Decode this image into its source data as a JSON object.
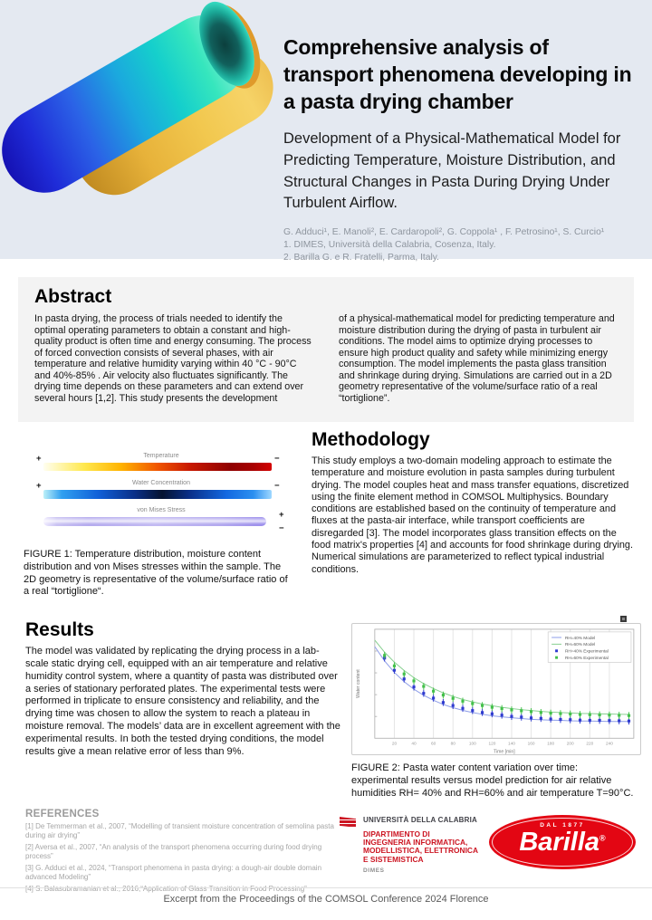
{
  "header": {
    "title": "Comprehensive analysis of transport phenomena developing in a pasta drying chamber",
    "subtitle": "Development of a Physical-Mathematical Model for Predicting Temperature, Moisture Distribution, and Structural Changes in Pasta During Drying Under Turbulent Airflow.",
    "authors": "G. Adduci¹, E. Manoli², E. Cardaropoli², G. Coppola¹ , F. Petrosino¹, S. Curcio¹",
    "affiliation1": "1. DIMES, Università della Calabria, Cosenza, Italy.",
    "affiliation2": "2. Barilla G. e R. Fratelli, Parma, Italy."
  },
  "abstract": {
    "heading": "Abstract",
    "col1": "In pasta drying, the process of trials needed to identify the optimal operating parameters to obtain a constant and high-quality product is often time and energy consuming. The process of forced convection consists of several phases, with air temperature and relative humidity varying within 40 °C - 90°C and 40%-85% . Air velocity also fluctuates significantly. The drying time depends on these parameters and can extend over several hours [1,2]. This study presents the development",
    "col2": "of a physical-mathematical model for predicting temperature and moisture distribution during the drying of pasta in turbulent air conditions. The model aims to optimize drying processes to ensure high product quality and safety while minimizing energy consumption. The model implements the pasta glass transition and shrinkage during drying. Simulations are carried out in a 2D geometry representative of the volume/surface ratio of a real “tortiglione”."
  },
  "figure1": {
    "bars": [
      {
        "label": "Temperature",
        "left_sign": "+",
        "right_sign": "−"
      },
      {
        "label": "Water Concentration",
        "left_sign": "+",
        "right_sign": "−"
      },
      {
        "label": "von Mises Stress",
        "top_sign": "+",
        "bottom_sign": "−"
      }
    ],
    "caption": "FIGURE 1: Temperature distribution, moisture content distribution and von Mises stresses within the sample. The 2D geometry is representative of the volume/surface ratio of a real “tortiglione“."
  },
  "methodology": {
    "heading": "Methodology",
    "body": "This study employs a two-domain modeling approach to estimate the temperature and moisture evolution in pasta samples during turbulent drying. The model couples heat and mass transfer equations, discretized using the finite element method in COMSOL Multiphysics. Boundary conditions are established based on the continuity of temperature and fluxes at the pasta-air interface, while transport coefficients are disregarded [3]. The model incorporates glass transition effects on the food matrix's properties [4] and accounts for food shrinkage during drying. Numerical simulations are parameterized to reflect typical industrial conditions."
  },
  "results": {
    "heading": "Results",
    "body": "The model was validated by replicating the drying process in a lab-scale static drying cell, equipped with an air temperature and relative humidity control system, where a quantity of pasta was distributed over a series of stationary perforated plates. The experimental tests were performed in triplicate to ensure consistency and reliability, and the drying time was chosen to allow the system to reach a plateau in moisture removal. The models’ data are in excellent agreement with the experimental results. In both the tested drying conditions, the model results give a mean relative error of less than 9%."
  },
  "figure2": {
    "caption": "FIGURE 2:  Pasta water content variation over time: experimental results versus model prediction for air relative humidities RH= 40% and RH=60% and air temperature T=90°C."
  },
  "references": {
    "heading": "REFERENCES",
    "items": [
      "[1] De Temmerman et al., 2007,  “Modelling of transient moisture concentration of semolina pasta during air drying”",
      "[2] Aversa et al., 2007, “An analysis of the transport phenomena occurring during food drying process”",
      "[3] G. Adduci et al., 2024, “Transport phenomena in pasta drying: a dough-air double domain advanced Modeling”",
      "[4] S. Balasubramanian et al., 2016,“Application of Glass Transition in Food Processing”"
    ]
  },
  "logos": {
    "unical": {
      "university": "UNIVERSITÀ DELLA CALABRIA",
      "dept_lines": [
        "DIPARTIMENTO DI",
        "INGEGNERIA INFORMATICA,",
        "MODELLISTICA, ELETTRONICA",
        "E SISTEMISTICA"
      ],
      "abbr": "DIMES"
    },
    "barilla": {
      "tagline": "DAL 1877",
      "name": "Barilla",
      "reg": "®"
    }
  },
  "footer": "Excerpt from the Proceedings of the COMSOL Conference 2024 Florence",
  "colors": {
    "header_bg": "#e4e9f1",
    "section_bg": "#f3f3f3",
    "unical_red": "#cc1522",
    "barilla_red": "#e30613"
  },
  "chart_data": {
    "type": "line",
    "title": "",
    "xlabel": "Time [min]",
    "ylabel": "Water content",
    "xlim": [
      0,
      265
    ],
    "ylim": [
      0.1,
      0.6
    ],
    "x_ticks": [
      20,
      40,
      60,
      80,
      100,
      120,
      140,
      160,
      180,
      200,
      220,
      240
    ],
    "grid": "vertical",
    "legend_position": "top-right",
    "series": [
      {
        "name": "RH=40% Model",
        "type": "line",
        "color": "#8c9ce8",
        "x": [
          0,
          10,
          20,
          30,
          40,
          50,
          60,
          70,
          80,
          90,
          100,
          110,
          120,
          130,
          140,
          150,
          160,
          170,
          180,
          190,
          200,
          210,
          220,
          230,
          240,
          250,
          260
        ],
        "y": [
          0.52,
          0.455,
          0.402,
          0.36,
          0.325,
          0.297,
          0.274,
          0.255,
          0.24,
          0.228,
          0.218,
          0.21,
          0.203,
          0.198,
          0.194,
          0.19,
          0.187,
          0.185,
          0.183,
          0.182,
          0.18,
          0.179,
          0.179,
          0.178,
          0.177,
          0.177,
          0.177
        ]
      },
      {
        "name": "RH=60% Model",
        "type": "line",
        "color": "#86cf8e",
        "x": [
          0,
          10,
          20,
          30,
          40,
          50,
          60,
          70,
          80,
          90,
          100,
          110,
          120,
          130,
          140,
          150,
          160,
          170,
          180,
          190,
          200,
          210,
          220,
          230,
          240,
          250,
          260
        ],
        "y": [
          0.55,
          0.495,
          0.449,
          0.411,
          0.378,
          0.351,
          0.328,
          0.308,
          0.292,
          0.278,
          0.267,
          0.257,
          0.249,
          0.242,
          0.236,
          0.231,
          0.227,
          0.223,
          0.22,
          0.218,
          0.216,
          0.214,
          0.213,
          0.212,
          0.211,
          0.21,
          0.209
        ]
      },
      {
        "name": "RH=40% Experimental",
        "type": "scatter",
        "color": "#2f3bcf",
        "yerr": 0.016,
        "x": [
          10,
          20,
          30,
          40,
          50,
          60,
          70,
          80,
          90,
          100,
          110,
          120,
          130,
          140,
          150,
          160,
          170,
          180,
          190,
          200,
          210,
          220,
          230,
          240,
          250,
          260
        ],
        "y": [
          0.468,
          0.412,
          0.372,
          0.335,
          0.306,
          0.284,
          0.264,
          0.25,
          0.237,
          0.227,
          0.218,
          0.212,
          0.206,
          0.2,
          0.197,
          0.193,
          0.191,
          0.188,
          0.186,
          0.185,
          0.183,
          0.182,
          0.182,
          0.181,
          0.18,
          0.179
        ]
      },
      {
        "name": "RH=60% Experimental",
        "type": "scatter",
        "color": "#43c04a",
        "yerr": 0.016,
        "x": [
          10,
          20,
          30,
          40,
          50,
          60,
          70,
          80,
          90,
          100,
          110,
          120,
          130,
          140,
          150,
          160,
          170,
          180,
          190,
          200,
          210,
          220,
          230,
          240,
          250,
          260
        ],
        "y": [
          0.48,
          0.432,
          0.395,
          0.363,
          0.338,
          0.316,
          0.298,
          0.283,
          0.27,
          0.259,
          0.25,
          0.242,
          0.236,
          0.23,
          0.226,
          0.222,
          0.218,
          0.215,
          0.213,
          0.211,
          0.209,
          0.208,
          0.207,
          0.206,
          0.205,
          0.204
        ]
      }
    ]
  }
}
